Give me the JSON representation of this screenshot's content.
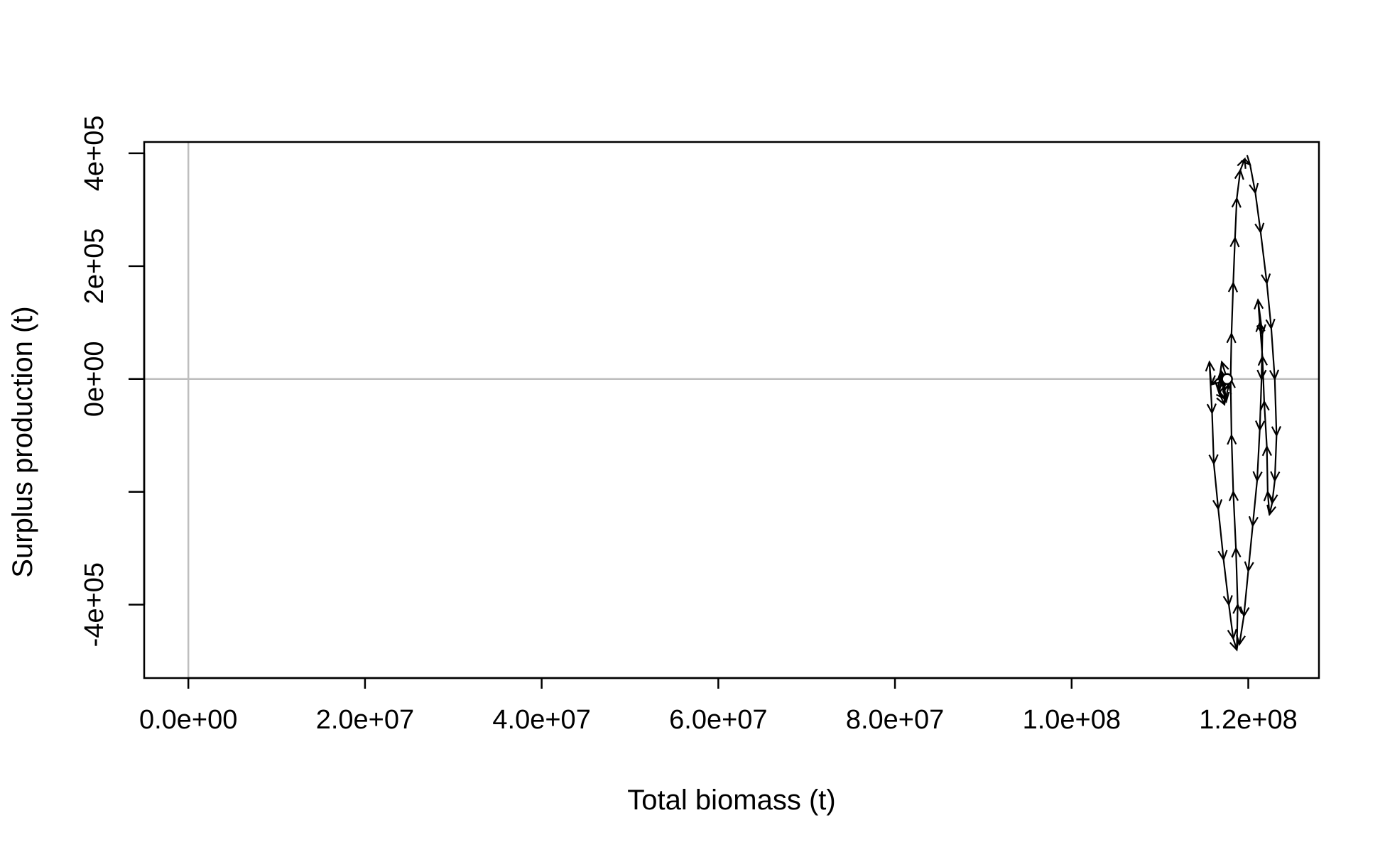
{
  "chart_data": {
    "type": "line",
    "title": "",
    "xlabel": "Total biomass (t)",
    "ylabel": "Surplus production (t)",
    "xlim": [
      -5000000,
      128000000
    ],
    "ylim": [
      -530000,
      420000
    ],
    "x_ticks": [
      0,
      20000000,
      40000000,
      60000000,
      80000000,
      100000000,
      120000000
    ],
    "x_tick_labels": [
      "0.0e+00",
      "2.0e+07",
      "4.0e+07",
      "6.0e+07",
      "8.0e+07",
      "1.0e+08",
      "1.2e+08"
    ],
    "y_ticks": [
      -400000,
      -200000,
      0,
      200000,
      400000
    ],
    "y_tick_labels": [
      "-4e+05",
      "",
      "0e+00",
      "2e+05",
      "4e+05"
    ],
    "reference_lines": {
      "x": 0,
      "y": 0,
      "color": "#bebebe"
    },
    "grid": false,
    "legend": "none",
    "colors": {
      "series": "#000000",
      "reference": "#bebebe",
      "start_point_fill": "#ffffff"
    },
    "series": [
      {
        "marker": "arrows",
        "x": [
          117600000,
          117200000,
          116900000,
          117500000,
          117100000,
          116700000,
          117300000,
          117800000,
          117000000,
          116600000,
          117400000,
          116900000,
          115800000,
          115600000,
          115900000,
          116100000,
          116600000,
          117200000,
          117800000,
          118300000,
          118700000,
          118800000,
          118600000,
          118300000,
          118100000,
          118000000,
          118100000,
          118300000,
          118500000,
          118700000,
          119100000,
          119600000,
          120200000,
          120800000,
          121400000,
          122100000,
          122600000,
          123000000,
          123200000,
          123000000,
          122700000,
          122400000,
          122200000,
          122100000,
          121800000,
          121600000,
          121300000,
          121100000,
          121600000,
          121500000,
          121300000,
          121000000,
          120500000,
          120000000,
          119500000,
          119000000
        ],
        "y": [
          0,
          -20000,
          15000,
          -40000,
          10000,
          -25000,
          -45000,
          -10000,
          30000,
          -20000,
          -35000,
          5000,
          -10000,
          30000,
          -60000,
          -150000,
          -230000,
          -320000,
          -400000,
          -460000,
          -480000,
          -400000,
          -300000,
          -200000,
          -100000,
          0,
          80000,
          170000,
          250000,
          320000,
          370000,
          390000,
          380000,
          330000,
          260000,
          170000,
          90000,
          0,
          -100000,
          -180000,
          -220000,
          -240000,
          -200000,
          -120000,
          -40000,
          40000,
          100000,
          140000,
          80000,
          0,
          -90000,
          -180000,
          -260000,
          -340000,
          -420000,
          -470000
        ]
      }
    ],
    "start_point": {
      "x": 117600000,
      "y": 0
    }
  }
}
